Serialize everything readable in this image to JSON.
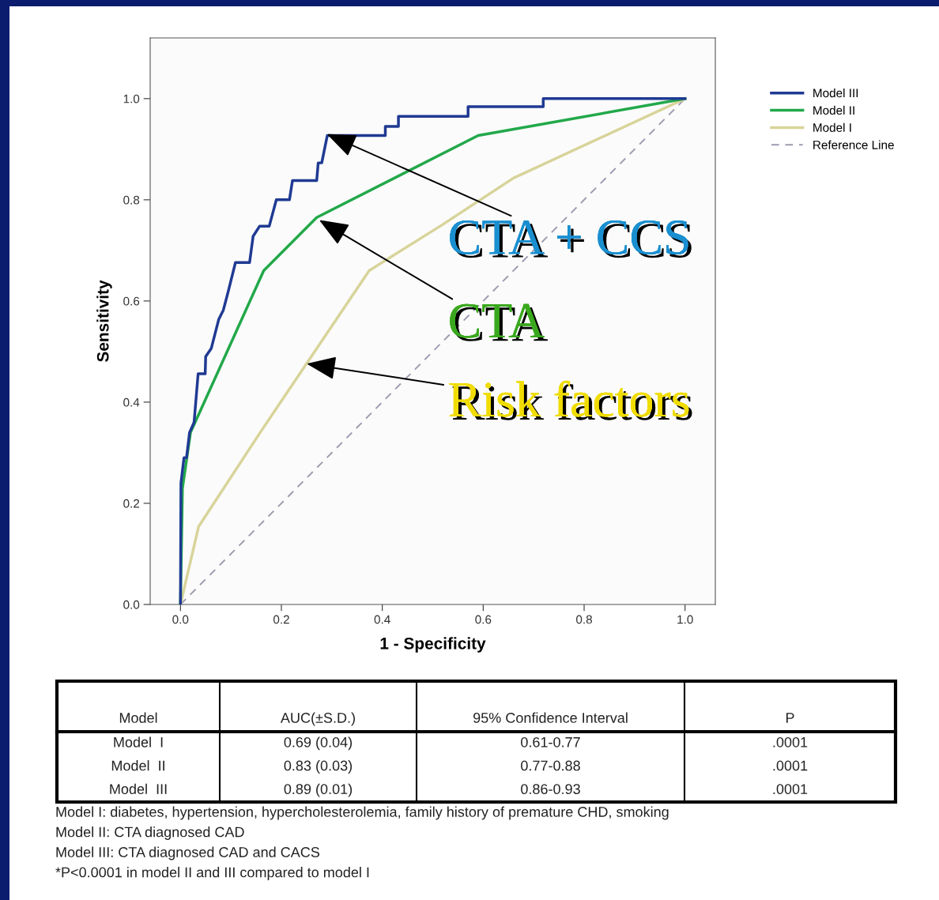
{
  "chart_data": {
    "type": "line",
    "xlabel": "1 - Specificity",
    "ylabel": "Sensitivity",
    "xlim": [
      -0.06,
      1.06
    ],
    "ylim": [
      0,
      1.12
    ],
    "xticks": [
      {
        "value": 0,
        "label": "0.0"
      },
      0.2,
      0.4,
      0.6,
      0.8,
      {
        "value": 1,
        "label": "1.0"
      }
    ],
    "yticks": [
      {
        "value": 0,
        "label": "0.0"
      },
      0.2,
      0.4,
      0.6,
      0.8,
      {
        "value": 1,
        "label": "1.0"
      }
    ],
    "grid": false,
    "legend": "top right",
    "marker": "none",
    "series": [
      {
        "name": "Model III",
        "color": "#1f3a93",
        "x": [
          0,
          0.001,
          0.007,
          0.012,
          0.018,
          0.027,
          0.035,
          0.049,
          0.05,
          0.061,
          0.076,
          0.085,
          0.095,
          0.109,
          0.137,
          0.144,
          0.157,
          0.176,
          0.19,
          0.216,
          0.222,
          0.27,
          0.273,
          0.28,
          0.291,
          0.406,
          0.406,
          0.432,
          0.432,
          0.57,
          0.57,
          0.719,
          0.719,
          1
        ],
        "values": [
          0,
          0.24,
          0.29,
          0.29,
          0.34,
          0.36,
          0.456,
          0.456,
          0.49,
          0.506,
          0.564,
          0.582,
          0.62,
          0.676,
          0.676,
          0.728,
          0.748,
          0.748,
          0.8,
          0.8,
          0.838,
          0.838,
          0.873,
          0.873,
          0.927,
          0.927,
          0.945,
          0.945,
          0.965,
          0.965,
          0.984,
          0.984,
          1,
          1
        ]
      },
      {
        "name": "Model II",
        "color": "#22a84a",
        "x": [
          0,
          0.004,
          0.02,
          0.165,
          0.27,
          0.59,
          1
        ],
        "values": [
          0,
          0.23,
          0.34,
          0.66,
          0.765,
          0.927,
          1
        ]
      },
      {
        "name": "Model I",
        "color": "#d8d49a",
        "x": [
          0,
          0.036,
          0.158,
          0.374,
          0.518,
          0.66,
          1
        ],
        "values": [
          0,
          0.154,
          0.34,
          0.66,
          0.75,
          0.843,
          1
        ]
      },
      {
        "name": "Reference Line",
        "color": "#a09ab0",
        "line_style": "dashed",
        "x": [
          0,
          1
        ],
        "values": [
          0,
          1
        ]
      }
    ],
    "annotations": [
      {
        "text": "CTA + CCS",
        "x": 0.29,
        "y": 0.93
      },
      {
        "text": "CTA",
        "x": 0.275,
        "y": 0.76
      },
      {
        "text": "Risk factors",
        "x": 0.25,
        "y": 0.476
      },
      "Model",
      "AUC(±S.D.)",
      "95% Confidence Interval",
      "P",
      "Model  I",
      "0.69 (0.04)",
      "0.61-0.77",
      ".0001",
      "Model  II",
      "0.83 (0.03)",
      "0.77-0.88",
      ".0001",
      "Model  III",
      "0.89 (0.01)",
      "0.86-0.93",
      ".0001",
      "Model I: diabetes, hypertension, hypercholesterolemia, family history of premature CHD, smoking",
      "Model II: CTA diagnosed CAD",
      "Model III: CTA diagnosed CAD and CACS",
      "*P<0.0001 in model II and III compared to model I"
    ]
  }
}
